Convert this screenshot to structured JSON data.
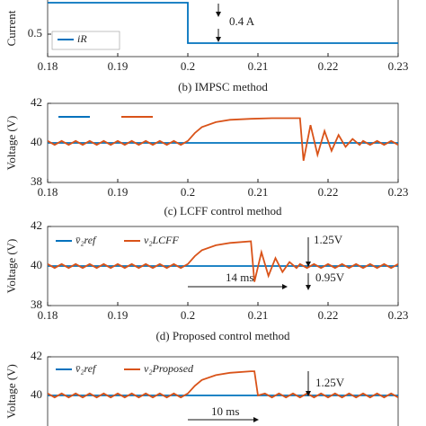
{
  "chart_data": [
    {
      "type": "line",
      "ylabel": "Current",
      "caption": "(b) IMPSC method",
      "xlim": [
        0.18,
        0.23
      ],
      "xticks": [
        0.18,
        0.19,
        0.2,
        0.21,
        0.22,
        0.23
      ],
      "ylim": [
        0.4,
        0.66
      ],
      "yticks": [
        0.5
      ],
      "series": [
        {
          "name": "iR",
          "color": "#0072bd",
          "x": [
            0.18,
            0.2,
            0.2,
            0.23
          ],
          "values": [
            0.64,
            0.64,
            0.46,
            0.46
          ]
        }
      ],
      "annotations": [
        "0.4 A"
      ]
    },
    {
      "type": "line",
      "ylabel": "Voltage (V)",
      "caption": "(c) LCFF control method",
      "xlim": [
        0.18,
        0.23
      ],
      "xticks": [
        0.18,
        0.19,
        0.2,
        0.21,
        0.22,
        0.23
      ],
      "ylim": [
        38,
        42
      ],
      "yticks": [
        38,
        40,
        42
      ],
      "series": [
        {
          "color": "#0072bd",
          "x": [
            0.18,
            0.23
          ],
          "values": [
            40,
            40
          ]
        },
        {
          "color": "#d95319",
          "x": [
            0.18,
            0.181,
            0.182,
            0.183,
            0.184,
            0.185,
            0.186,
            0.187,
            0.188,
            0.189,
            0.19,
            0.191,
            0.192,
            0.193,
            0.194,
            0.195,
            0.196,
            0.197,
            0.198,
            0.199,
            0.2,
            0.201,
            0.202,
            0.204,
            0.206,
            0.209,
            0.212,
            0.216,
            0.2165,
            0.2175,
            0.2185,
            0.2195,
            0.2205,
            0.2215,
            0.2225,
            0.2235,
            0.2245,
            0.225,
            0.226,
            0.227,
            0.228,
            0.229,
            0.23
          ],
          "values": [
            40.1,
            39.9,
            40.1,
            39.9,
            40.1,
            39.9,
            40.1,
            39.9,
            40.1,
            39.9,
            40.1,
            39.9,
            40.1,
            39.9,
            40.1,
            39.9,
            40.1,
            39.9,
            40.1,
            39.9,
            40.1,
            40.5,
            40.8,
            41.05,
            41.17,
            41.22,
            41.25,
            41.25,
            39.1,
            40.9,
            39.4,
            40.6,
            39.6,
            40.4,
            39.8,
            40.2,
            39.9,
            40.1,
            39.9,
            40.1,
            39.9,
            40.1,
            39.9
          ]
        }
      ],
      "annotations": []
    },
    {
      "type": "line",
      "ylabel": "Voltage (V)",
      "caption": "(d) Proposed control method",
      "xlim": [
        0.18,
        0.23
      ],
      "xticks": [
        0.18,
        0.19,
        0.2,
        0.21,
        0.22,
        0.23
      ],
      "ylim": [
        38,
        42
      ],
      "yticks": [
        38,
        40,
        42
      ],
      "series": [
        {
          "name": "v̄₂ref",
          "color": "#0072bd",
          "x": [
            0.18,
            0.23
          ],
          "values": [
            40,
            40
          ]
        },
        {
          "name": "v₂LCFF",
          "color": "#d95319",
          "x": [
            0.18,
            0.181,
            0.182,
            0.183,
            0.184,
            0.185,
            0.186,
            0.187,
            0.188,
            0.189,
            0.19,
            0.191,
            0.192,
            0.193,
            0.194,
            0.195,
            0.196,
            0.197,
            0.198,
            0.199,
            0.2,
            0.201,
            0.202,
            0.204,
            0.206,
            0.209,
            0.2095,
            0.2105,
            0.2115,
            0.2125,
            0.2135,
            0.2145,
            0.2155,
            0.216,
            0.217,
            0.218,
            0.219,
            0.22,
            0.221,
            0.222,
            0.223,
            0.224,
            0.225,
            0.226,
            0.227,
            0.228,
            0.229,
            0.23
          ],
          "values": [
            40.1,
            39.9,
            40.1,
            39.9,
            40.1,
            39.9,
            40.1,
            39.9,
            40.1,
            39.9,
            40.1,
            39.9,
            40.1,
            39.9,
            40.1,
            39.9,
            40.1,
            39.9,
            40.1,
            39.9,
            40.1,
            40.5,
            40.8,
            41.05,
            41.17,
            41.25,
            39.2,
            40.7,
            39.5,
            40.4,
            39.7,
            40.2,
            39.9,
            40.1,
            39.9,
            40.1,
            39.9,
            40.1,
            39.9,
            40.1,
            39.9,
            40.1,
            39.9,
            40.1,
            39.9,
            40.1,
            39.9,
            40.1
          ]
        }
      ],
      "annotations": [
        "1.25V",
        "14 ms",
        "0.95V"
      ]
    },
    {
      "type": "line",
      "ylabel": "Voltage (V)",
      "xlim": [
        0.18,
        0.23
      ],
      "ylim": [
        38,
        42
      ],
      "yticks": [
        40,
        42
      ],
      "series": [
        {
          "name": "v̄₂ref",
          "color": "#0072bd",
          "x": [
            0.18,
            0.23
          ],
          "values": [
            40,
            40
          ]
        },
        {
          "name": "v₂Proposed",
          "color": "#d95319",
          "x": [
            0.18,
            0.181,
            0.182,
            0.183,
            0.184,
            0.185,
            0.186,
            0.187,
            0.188,
            0.189,
            0.19,
            0.191,
            0.192,
            0.193,
            0.194,
            0.195,
            0.196,
            0.197,
            0.198,
            0.199,
            0.2,
            0.201,
            0.202,
            0.204,
            0.206,
            0.209,
            0.2095,
            0.21,
            0.211,
            0.212,
            0.213,
            0.214,
            0.215,
            0.216,
            0.217,
            0.218,
            0.219,
            0.22,
            0.221,
            0.222,
            0.223,
            0.224,
            0.225,
            0.226,
            0.227,
            0.228,
            0.229,
            0.23
          ],
          "values": [
            40.1,
            39.9,
            40.1,
            39.9,
            40.1,
            39.9,
            40.1,
            39.9,
            40.1,
            39.9,
            40.1,
            39.9,
            40.1,
            39.9,
            40.1,
            39.9,
            40.1,
            39.9,
            40.1,
            39.9,
            40.1,
            40.5,
            40.8,
            41.05,
            41.17,
            41.25,
            41.25,
            40,
            40.1,
            39.9,
            40.1,
            39.9,
            40.1,
            39.9,
            40.1,
            39.9,
            40.1,
            39.9,
            40.1,
            39.9,
            40.1,
            39.9,
            40.1,
            39.9,
            40.1,
            39.9,
            40.1,
            39.9
          ]
        }
      ],
      "annotations": [
        "1.25V",
        "10 ms"
      ]
    }
  ]
}
